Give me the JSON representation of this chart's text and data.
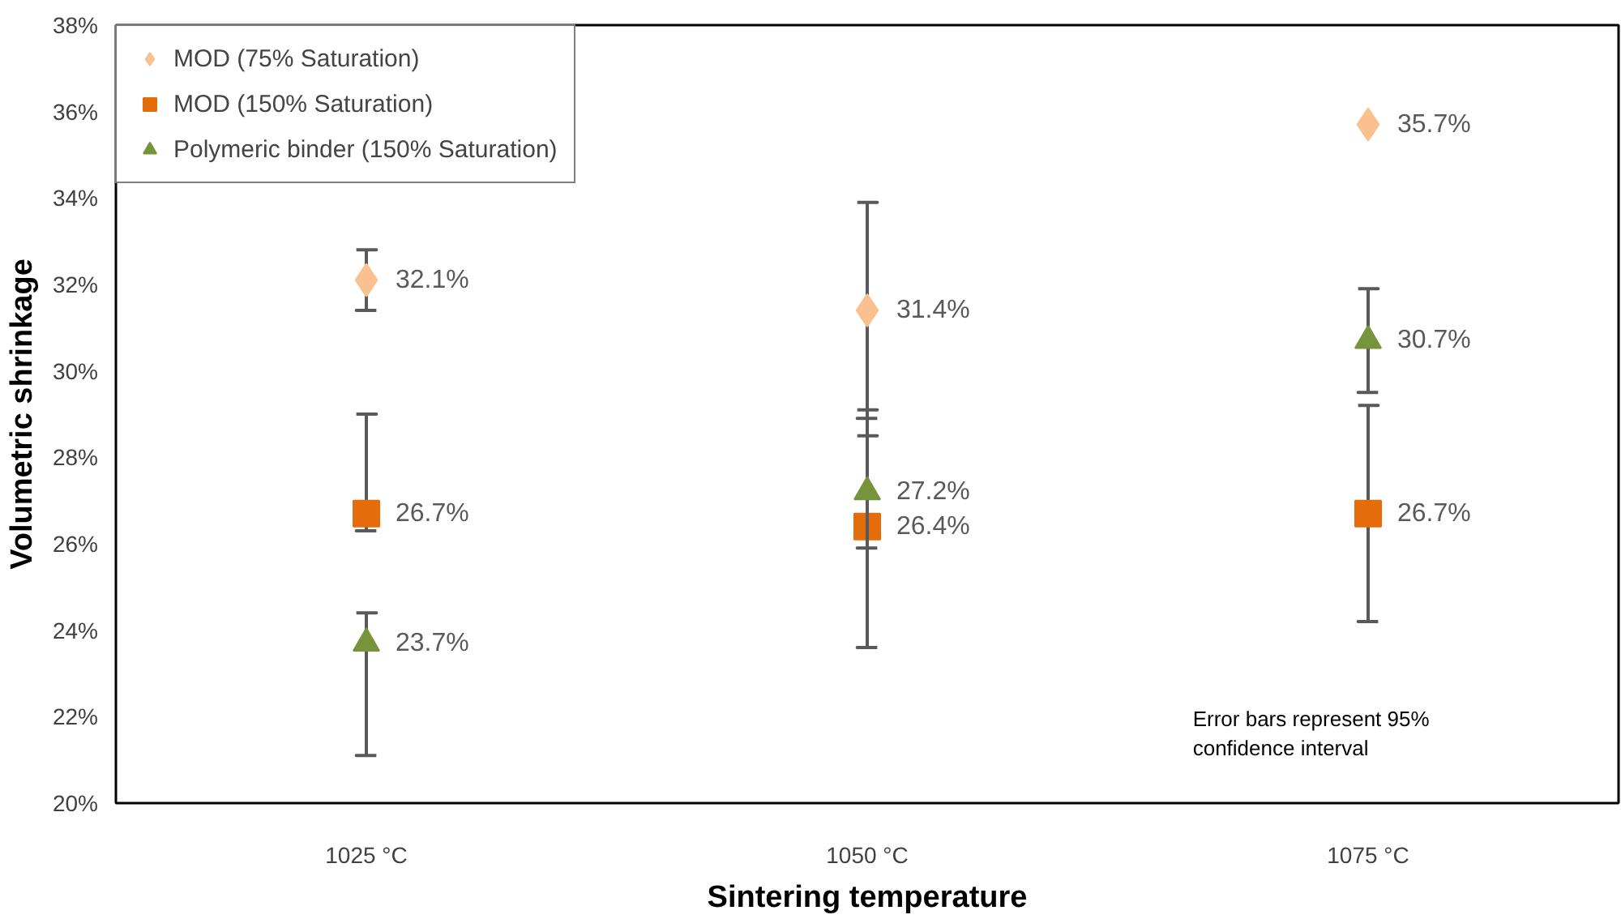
{
  "chart_data": {
    "type": "scatter",
    "xlabel": "Sintering temperature",
    "ylabel": "Volumetric shrinkage",
    "categories": [
      "1025 °C",
      "1050 °C",
      "1075 °C"
    ],
    "ylim": [
      20,
      38
    ],
    "yticks": [
      {
        "value": 20,
        "label": "20%"
      },
      {
        "value": 22,
        "label": "22%"
      },
      {
        "value": 24,
        "label": "24%"
      },
      {
        "value": 26,
        "label": "26%"
      },
      {
        "value": 28,
        "label": "28%"
      },
      {
        "value": 30,
        "label": "30%"
      },
      {
        "value": 32,
        "label": "32%"
      },
      {
        "value": 34,
        "label": "34%"
      },
      {
        "value": 36,
        "label": "36%"
      },
      {
        "value": 38,
        "label": "38%"
      }
    ],
    "grid": false,
    "legend": "top left",
    "series": [
      {
        "name": "MOD (75% Saturation)",
        "color": "#fac090",
        "marker": "diamond",
        "values": [
          32.1,
          31.4,
          35.7
        ],
        "errors": [
          [
            31.4,
            32.8
          ],
          [
            28.9,
            33.9
          ],
          null
        ],
        "value_labels": [
          "32.1%",
          "31.4%",
          "35.7%"
        ]
      },
      {
        "name": "MOD (150% Saturation)",
        "color": "#e46c0a",
        "marker": "square",
        "values": [
          26.7,
          26.4,
          26.7
        ],
        "errors": [
          [
            26.3,
            29.0
          ],
          [
            23.6,
            29.1
          ],
          [
            24.2,
            29.2
          ]
        ],
        "value_labels": [
          "26.7%",
          "26.4%",
          "26.7%"
        ]
      },
      {
        "name": "Polymeric binder (150% Saturation)",
        "color": "#77933c",
        "marker": "triangle",
        "values": [
          23.7,
          27.2,
          30.7
        ],
        "errors": [
          [
            21.1,
            24.4
          ],
          [
            25.9,
            28.5
          ],
          [
            29.5,
            31.9
          ]
        ],
        "value_labels": [
          "23.7%",
          "27.2%",
          "30.7%"
        ]
      }
    ],
    "annotations": [
      "Error bars represent 95% confidence interval"
    ]
  }
}
